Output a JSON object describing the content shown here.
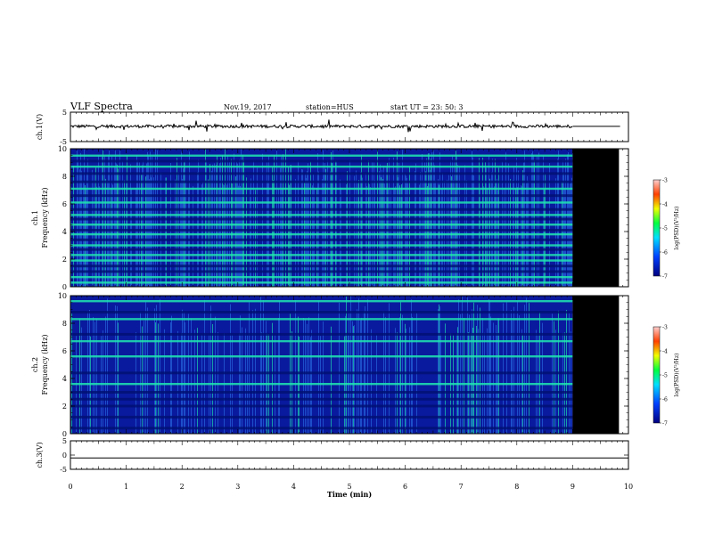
{
  "header": {
    "title": "VLF Spectra",
    "date": "Nov.19, 2017",
    "station": "station=HUS",
    "start_ut": "start UT =  23: 50: 3"
  },
  "colors": {
    "spectrogram_background": "#0a1a9e",
    "noise_lines": "#2f7cf0",
    "strong_lines": "#20e8b0",
    "no_data": "#000000"
  },
  "chart_data": [
    {
      "type": "line",
      "name": "ch1-waveform",
      "ylabel": "ch.1(V)",
      "ylim": [
        -5,
        5
      ],
      "yticks": [
        "5",
        "-5"
      ],
      "xlim": [
        0,
        10
      ],
      "data_end_min": 9.0,
      "baseline_v": 0.2
    },
    {
      "type": "heatmap",
      "name": "ch1-spectrogram",
      "ylabel": "ch.1\nFrequency (kHz)",
      "ylim": [
        0,
        10
      ],
      "yticks": [
        "0",
        "2",
        "4",
        "6",
        "8",
        "10"
      ],
      "xlim": [
        0,
        10
      ],
      "data_end_min": 9.0,
      "no_data_end_min": 9.83,
      "colorbar": {
        "label": "log(PSD)(V²/Hz)",
        "range": [
          -7,
          -3
        ],
        "ticks": [
          "-3",
          "-4",
          "-5",
          "-6",
          "-7"
        ]
      },
      "bright_lines_khz": [
        0.3,
        0.7,
        1.9,
        2.3,
        3.0,
        3.8,
        4.5,
        5.2,
        6.1,
        7.1,
        8.7,
        9.5
      ],
      "dim_lines_khz": [
        1.1,
        1.5,
        2.7,
        3.4,
        4.1,
        4.9,
        5.6,
        6.6,
        7.6,
        8.2,
        9.1
      ]
    },
    {
      "type": "heatmap",
      "name": "ch2-spectrogram",
      "ylabel": "ch.2\nFrequency (kHz)",
      "ylim": [
        0,
        10
      ],
      "yticks": [
        "0",
        "2",
        "4",
        "6",
        "8",
        "10"
      ],
      "xlim": [
        0,
        10
      ],
      "data_end_min": 9.0,
      "no_data_end_min": 9.83,
      "colorbar": {
        "label": "log(PSD)(V²/Hz)",
        "range": [
          -7,
          -3
        ],
        "ticks": [
          "-3",
          "-4",
          "-5",
          "-6",
          "-7"
        ]
      },
      "bright_lines_khz": [
        3.6,
        5.6,
        6.7,
        8.3,
        9.6
      ],
      "dim_lines_khz": [
        0.4,
        1.2,
        2.0,
        2.5,
        3.0,
        4.4,
        7.2,
        8.8
      ]
    },
    {
      "type": "line",
      "name": "ch3-waveform",
      "ylabel": "ch.3(V)",
      "ylim": [
        -5,
        5
      ],
      "yticks": [
        "5",
        "0",
        "-5"
      ],
      "xlim": [
        0,
        10
      ],
      "xlabel": "Time  (min)",
      "xticks": [
        "0",
        "1",
        "2",
        "3",
        "4",
        "5",
        "6",
        "7",
        "8",
        "9",
        "10"
      ],
      "data_end_min": 10.0,
      "baseline_v": -1.0
    }
  ]
}
